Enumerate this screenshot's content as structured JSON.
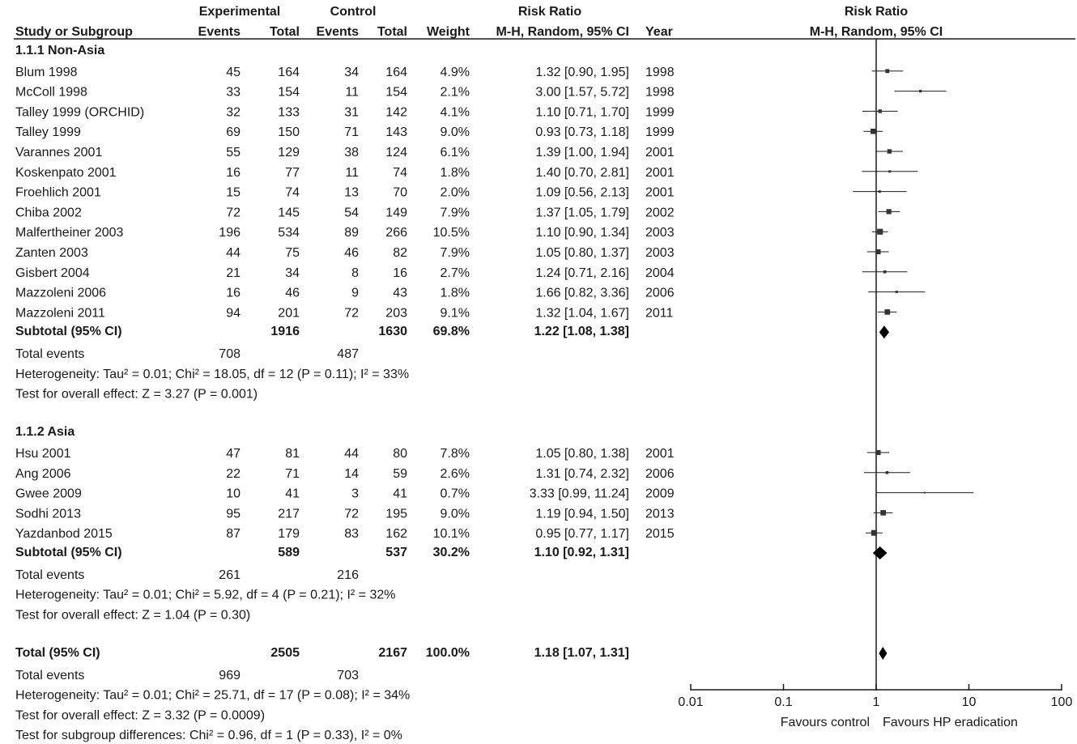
{
  "header": {
    "experimental": "Experimental",
    "control": "Control",
    "risk_ratio": "Risk Ratio",
    "study": "Study or Subgroup",
    "events": "Events",
    "total": "Total",
    "weight": "Weight",
    "method": "M-H, Random, 95% CI",
    "year": "Year",
    "plot_title": "Risk Ratio",
    "plot_method": "M-H, Random, 95% CI"
  },
  "groups": [
    {
      "title": "1.1.1 Non-Asia",
      "studies": [
        {
          "name": "Blum 1998",
          "e_events": "45",
          "e_total": "164",
          "c_events": "34",
          "c_total": "164",
          "weight": "4.9%",
          "ci_text": "1.32 [0.90, 1.95]",
          "year": "1998"
        },
        {
          "name": "McColl 1998",
          "e_events": "33",
          "e_total": "154",
          "c_events": "11",
          "c_total": "154",
          "weight": "2.1%",
          "ci_text": "3.00 [1.57, 5.72]",
          "year": "1998"
        },
        {
          "name": "Talley 1999 (ORCHID)",
          "e_events": "32",
          "e_total": "133",
          "c_events": "31",
          "c_total": "142",
          "weight": "4.1%",
          "ci_text": "1.10 [0.71, 1.70]",
          "year": "1999"
        },
        {
          "name": "Talley 1999",
          "e_events": "69",
          "e_total": "150",
          "c_events": "71",
          "c_total": "143",
          "weight": "9.0%",
          "ci_text": "0.93 [0.73, 1.18]",
          "year": "1999"
        },
        {
          "name": "Varannes 2001",
          "e_events": "55",
          "e_total": "129",
          "c_events": "38",
          "c_total": "124",
          "weight": "6.1%",
          "ci_text": "1.39 [1.00, 1.94]",
          "year": "2001"
        },
        {
          "name": "Koskenpato 2001",
          "e_events": "16",
          "e_total": "77",
          "c_events": "11",
          "c_total": "74",
          "weight": "1.8%",
          "ci_text": "1.40 [0.70, 2.81]",
          "year": "2001"
        },
        {
          "name": "Froehlich 2001",
          "e_events": "15",
          "e_total": "74",
          "c_events": "13",
          "c_total": "70",
          "weight": "2.0%",
          "ci_text": "1.09 [0.56, 2.13]",
          "year": "2001"
        },
        {
          "name": "Chiba 2002",
          "e_events": "72",
          "e_total": "145",
          "c_events": "54",
          "c_total": "149",
          "weight": "7.9%",
          "ci_text": "1.37 [1.05, 1.79]",
          "year": "2002"
        },
        {
          "name": "Malfertheiner 2003",
          "e_events": "196",
          "e_total": "534",
          "c_events": "89",
          "c_total": "266",
          "weight": "10.5%",
          "ci_text": "1.10 [0.90, 1.34]",
          "year": "2003"
        },
        {
          "name": "Zanten 2003",
          "e_events": "44",
          "e_total": "75",
          "c_events": "46",
          "c_total": "82",
          "weight": "7.9%",
          "ci_text": "1.05 [0.80, 1.37]",
          "year": "2003"
        },
        {
          "name": "Gisbert 2004",
          "e_events": "21",
          "e_total": "34",
          "c_events": "8",
          "c_total": "16",
          "weight": "2.7%",
          "ci_text": "1.24 [0.71, 2.16]",
          "year": "2004"
        },
        {
          "name": "Mazzoleni 2006",
          "e_events": "16",
          "e_total": "46",
          "c_events": "9",
          "c_total": "43",
          "weight": "1.8%",
          "ci_text": "1.66 [0.82, 3.36]",
          "year": "2006"
        },
        {
          "name": "Mazzoleni 2011",
          "e_events": "94",
          "e_total": "201",
          "c_events": "72",
          "c_total": "203",
          "weight": "9.1%",
          "ci_text": "1.32 [1.04, 1.67]",
          "year": "2011"
        }
      ],
      "subtotal": {
        "label": "Subtotal (95% CI)",
        "e_total": "1916",
        "c_total": "1630",
        "weight": "69.8%",
        "ci_text": "1.22 [1.08, 1.38]"
      },
      "total_events": {
        "label": "Total events",
        "e": "708",
        "c": "487"
      },
      "heterogeneity": "Heterogeneity: Tau² = 0.01; Chi² = 18.05, df = 12 (P = 0.11); I² = 33%",
      "overall": "Test for overall effect: Z = 3.27 (P = 0.001)"
    },
    {
      "title": "1.1.2 Asia",
      "studies": [
        {
          "name": "Hsu 2001",
          "e_events": "47",
          "e_total": "81",
          "c_events": "44",
          "c_total": "80",
          "weight": "7.8%",
          "ci_text": "1.05 [0.80, 1.38]",
          "year": "2001"
        },
        {
          "name": "Ang 2006",
          "e_events": "22",
          "e_total": "71",
          "c_events": "14",
          "c_total": "59",
          "weight": "2.6%",
          "ci_text": "1.31 [0.74, 2.32]",
          "year": "2006"
        },
        {
          "name": "Gwee 2009",
          "e_events": "10",
          "e_total": "41",
          "c_events": "3",
          "c_total": "41",
          "weight": "0.7%",
          "ci_text": "3.33 [0.99, 11.24]",
          "year": "2009"
        },
        {
          "name": "Sodhi 2013",
          "e_events": "95",
          "e_total": "217",
          "c_events": "72",
          "c_total": "195",
          "weight": "9.0%",
          "ci_text": "1.19 [0.94, 1.50]",
          "year": "2013"
        },
        {
          "name": "Yazdanbod 2015",
          "e_events": "87",
          "e_total": "179",
          "c_events": "83",
          "c_total": "162",
          "weight": "10.1%",
          "ci_text": "0.95 [0.77, 1.17]",
          "year": "2015"
        }
      ],
      "subtotal": {
        "label": "Subtotal (95% CI)",
        "e_total": "589",
        "c_total": "537",
        "weight": "30.2%",
        "ci_text": "1.10 [0.92, 1.31]"
      },
      "total_events": {
        "label": "Total events",
        "e": "261",
        "c": "216"
      },
      "heterogeneity": "Heterogeneity: Tau² = 0.01; Chi² = 5.92, df = 4 (P = 0.21); I² = 32%",
      "overall": "Test for overall effect: Z = 1.04 (P = 0.30)"
    }
  ],
  "total": {
    "label": "Total (95% CI)",
    "e_total": "2505",
    "c_total": "2167",
    "weight": "100.0%",
    "ci_text": "1.18 [1.07, 1.31]",
    "events_label": "Total events",
    "e_events": "969",
    "c_events": "703",
    "heterogeneity": "Heterogeneity: Tau² = 0.01; Chi² = 25.71, df = 17 (P = 0.08); I² = 34%",
    "overall": "Test for overall effect: Z = 3.32 (P = 0.0009)",
    "subgroup": "Test for subgroup differences: Chi² = 0.96, df = 1 (P = 0.33), I² = 0%"
  },
  "axis": {
    "ticks": [
      "0.01",
      "0.1",
      "1",
      "10",
      "100"
    ],
    "favours_left": "Favours control",
    "favours_right": "Favours HP eradication"
  },
  "chart_data": {
    "type": "forest",
    "xscale": "log",
    "xlim": [
      0.01,
      100
    ],
    "null_value": 1,
    "title": "Risk Ratio",
    "subtitle": "M-H, Random, 95% CI",
    "xlabel_left": "Favours control",
    "xlabel_right": "Favours HP eradication",
    "studies": [
      {
        "name": "Blum 1998",
        "rr": 1.32,
        "lower": 0.9,
        "upper": 1.95,
        "weight": 4.9
      },
      {
        "name": "McColl 1998",
        "rr": 3.0,
        "lower": 1.57,
        "upper": 5.72,
        "weight": 2.1
      },
      {
        "name": "Talley 1999 (ORCHID)",
        "rr": 1.1,
        "lower": 0.71,
        "upper": 1.7,
        "weight": 4.1
      },
      {
        "name": "Talley 1999",
        "rr": 0.93,
        "lower": 0.73,
        "upper": 1.18,
        "weight": 9.0
      },
      {
        "name": "Varannes 2001",
        "rr": 1.39,
        "lower": 1.0,
        "upper": 1.94,
        "weight": 6.1
      },
      {
        "name": "Koskenpato 2001",
        "rr": 1.4,
        "lower": 0.7,
        "upper": 2.81,
        "weight": 1.8
      },
      {
        "name": "Froehlich 2001",
        "rr": 1.09,
        "lower": 0.56,
        "upper": 2.13,
        "weight": 2.0
      },
      {
        "name": "Chiba 2002",
        "rr": 1.37,
        "lower": 1.05,
        "upper": 1.79,
        "weight": 7.9
      },
      {
        "name": "Malfertheiner 2003",
        "rr": 1.1,
        "lower": 0.9,
        "upper": 1.34,
        "weight": 10.5
      },
      {
        "name": "Zanten 2003",
        "rr": 1.05,
        "lower": 0.8,
        "upper": 1.37,
        "weight": 7.9
      },
      {
        "name": "Gisbert 2004",
        "rr": 1.24,
        "lower": 0.71,
        "upper": 2.16,
        "weight": 2.7
      },
      {
        "name": "Mazzoleni 2006",
        "rr": 1.66,
        "lower": 0.82,
        "upper": 3.36,
        "weight": 1.8
      },
      {
        "name": "Mazzoleni 2011",
        "rr": 1.32,
        "lower": 1.04,
        "upper": 1.67,
        "weight": 9.1
      },
      {
        "name": "Hsu 2001",
        "rr": 1.05,
        "lower": 0.8,
        "upper": 1.38,
        "weight": 7.8
      },
      {
        "name": "Ang 2006",
        "rr": 1.31,
        "lower": 0.74,
        "upper": 2.32,
        "weight": 2.6
      },
      {
        "name": "Gwee 2009",
        "rr": 3.33,
        "lower": 0.99,
        "upper": 11.24,
        "weight": 0.7
      },
      {
        "name": "Sodhi 2013",
        "rr": 1.19,
        "lower": 0.94,
        "upper": 1.5,
        "weight": 9.0
      },
      {
        "name": "Yazdanbod 2015",
        "rr": 0.95,
        "lower": 0.77,
        "upper": 1.17,
        "weight": 10.1
      }
    ],
    "pooled": [
      {
        "name": "Subtotal (95% CI) 1.1.1 Non-Asia",
        "rr": 1.22,
        "lower": 1.08,
        "upper": 1.38
      },
      {
        "name": "Subtotal (95% CI) 1.1.2 Asia",
        "rr": 1.1,
        "lower": 0.92,
        "upper": 1.31
      },
      {
        "name": "Total (95% CI)",
        "rr": 1.18,
        "lower": 1.07,
        "upper": 1.31
      }
    ]
  }
}
